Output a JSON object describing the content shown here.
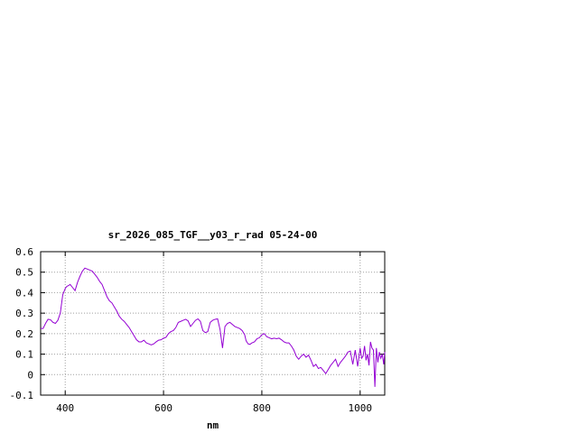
{
  "chart_data": {
    "type": "line",
    "title": "sr_2026_085_TGF__y03_r_rad 05-24-00",
    "xlabel": "nm",
    "ylabel": "",
    "xlim": [
      350,
      1050
    ],
    "ylim": [
      -0.1,
      0.6
    ],
    "xticks": [
      "400",
      "600",
      "800",
      "1000"
    ],
    "yticks": [
      "-0.1",
      "0",
      "0.1",
      "0.2",
      "0.3",
      "0.4",
      "0.5",
      "0.6"
    ],
    "grid": true,
    "legend": "none",
    "series": [
      {
        "color": "#9400d3",
        "x": [
          350,
          355,
          360,
          365,
          370,
          375,
          380,
          385,
          390,
          395,
          400,
          403,
          407,
          410,
          415,
          420,
          425,
          430,
          435,
          440,
          445,
          450,
          455,
          460,
          465,
          470,
          475,
          480,
          485,
          490,
          495,
          500,
          505,
          510,
          515,
          520,
          525,
          530,
          535,
          540,
          545,
          550,
          555,
          560,
          565,
          570,
          575,
          580,
          585,
          590,
          595,
          600,
          605,
          610,
          615,
          620,
          625,
          630,
          635,
          640,
          645,
          650,
          655,
          660,
          665,
          670,
          675,
          680,
          685,
          690,
          695,
          700,
          705,
          710,
          715,
          720,
          725,
          730,
          735,
          740,
          745,
          750,
          755,
          760,
          765,
          768,
          772,
          776,
          780,
          785,
          790,
          795,
          800,
          805,
          810,
          815,
          820,
          825,
          830,
          835,
          840,
          845,
          850,
          855,
          860,
          865,
          870,
          875,
          880,
          885,
          890,
          895,
          900,
          905,
          910,
          915,
          920,
          925,
          930,
          935,
          940,
          945,
          950,
          955,
          960,
          965,
          970,
          975,
          980,
          985,
          990,
          995,
          1000,
          1003,
          1006,
          1009,
          1012,
          1015,
          1018,
          1021,
          1024,
          1027,
          1030,
          1033,
          1036,
          1039,
          1042,
          1045,
          1048,
          1050
        ],
        "y": [
          0.225,
          0.225,
          0.25,
          0.27,
          0.268,
          0.255,
          0.25,
          0.265,
          0.3,
          0.39,
          0.42,
          0.43,
          0.435,
          0.44,
          0.425,
          0.41,
          0.45,
          0.48,
          0.505,
          0.52,
          0.515,
          0.51,
          0.505,
          0.49,
          0.475,
          0.455,
          0.44,
          0.41,
          0.38,
          0.36,
          0.35,
          0.33,
          0.31,
          0.285,
          0.27,
          0.26,
          0.245,
          0.23,
          0.21,
          0.19,
          0.17,
          0.16,
          0.16,
          0.168,
          0.155,
          0.15,
          0.145,
          0.15,
          0.16,
          0.168,
          0.17,
          0.178,
          0.182,
          0.2,
          0.21,
          0.215,
          0.23,
          0.255,
          0.26,
          0.265,
          0.27,
          0.262,
          0.235,
          0.25,
          0.265,
          0.272,
          0.26,
          0.215,
          0.205,
          0.21,
          0.255,
          0.265,
          0.27,
          0.272,
          0.22,
          0.13,
          0.235,
          0.25,
          0.255,
          0.245,
          0.235,
          0.23,
          0.225,
          0.215,
          0.195,
          0.165,
          0.15,
          0.148,
          0.155,
          0.16,
          0.175,
          0.18,
          0.195,
          0.2,
          0.185,
          0.18,
          0.175,
          0.178,
          0.175,
          0.178,
          0.17,
          0.16,
          0.155,
          0.155,
          0.14,
          0.12,
          0.09,
          0.075,
          0.09,
          0.1,
          0.085,
          0.095,
          0.07,
          0.04,
          0.05,
          0.03,
          0.035,
          0.02,
          0.005,
          0.025,
          0.045,
          0.06,
          0.075,
          0.04,
          0.06,
          0.075,
          0.09,
          0.11,
          0.115,
          0.05,
          0.12,
          0.04,
          0.13,
          0.08,
          0.09,
          0.14,
          0.07,
          0.1,
          0.045,
          0.16,
          0.13,
          0.12,
          -0.06,
          0.13,
          0.06,
          0.11,
          0.08,
          0.1,
          0.05,
          0.11
        ]
      }
    ]
  }
}
